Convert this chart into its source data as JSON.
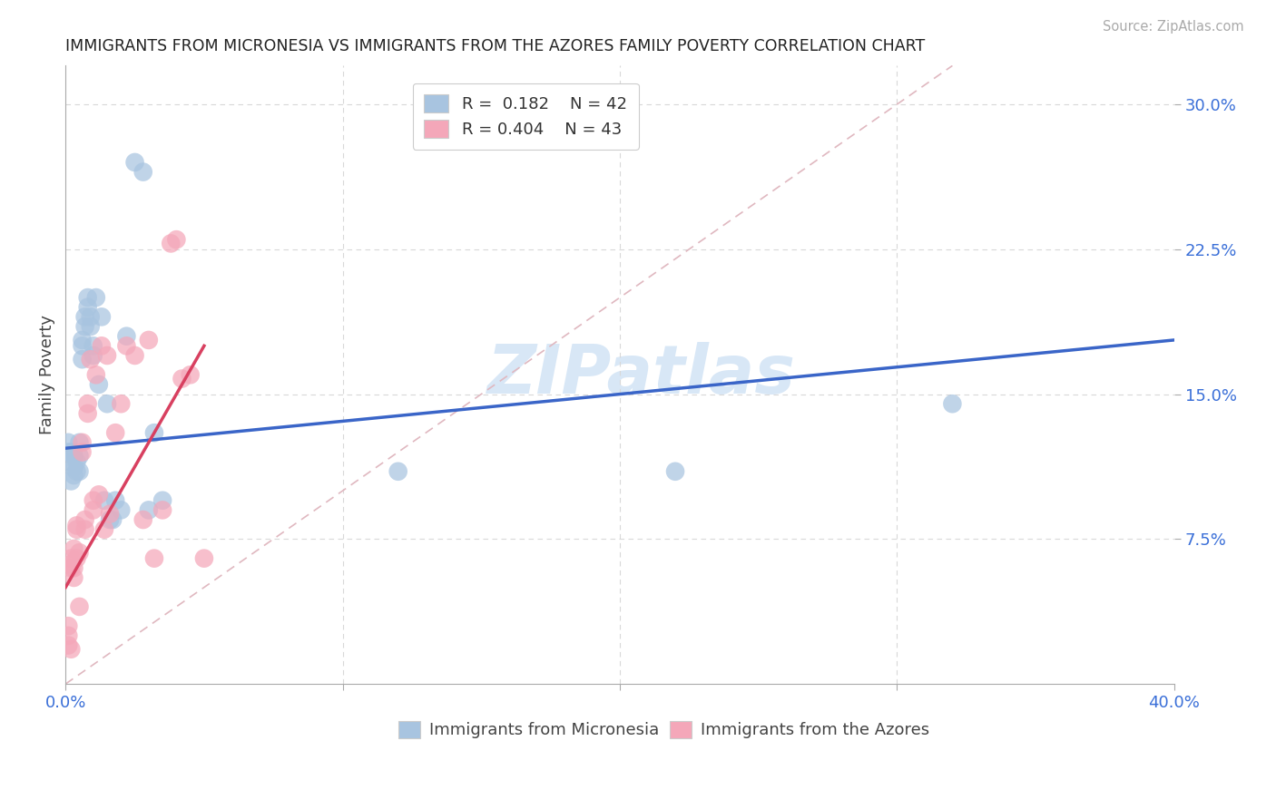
{
  "title": "IMMIGRANTS FROM MICRONESIA VS IMMIGRANTS FROM THE AZORES FAMILY POVERTY CORRELATION CHART",
  "source": "Source: ZipAtlas.com",
  "ylabel": "Family Poverty",
  "xlim": [
    0.0,
    0.4
  ],
  "ylim": [
    0.0,
    0.32
  ],
  "xticks": [
    0.0,
    0.1,
    0.2,
    0.3,
    0.4
  ],
  "ytick_vals": [
    0.075,
    0.15,
    0.225,
    0.3
  ],
  "yticklabels": [
    "7.5%",
    "15.0%",
    "22.5%",
    "30.0%"
  ],
  "legend1_R": "0.182",
  "legend1_N": "42",
  "legend2_R": "0.404",
  "legend2_N": "43",
  "legend1_label": "Immigrants from Micronesia",
  "legend2_label": "Immigrants from the Azores",
  "micronesia_color": "#a8c4e0",
  "azores_color": "#f4a7b9",
  "micronesia_line_color": "#3a65c8",
  "azores_line_color": "#d84060",
  "diagonal_color": "#e0b8c0",
  "grid_color": "#d8d8d8",
  "watermark_text": "ZIPatlas",
  "watermark_color": "#b8d4f0",
  "micronesia_x": [
    0.001,
    0.001,
    0.002,
    0.002,
    0.002,
    0.003,
    0.003,
    0.003,
    0.004,
    0.004,
    0.005,
    0.005,
    0.005,
    0.006,
    0.006,
    0.006,
    0.007,
    0.007,
    0.008,
    0.008,
    0.009,
    0.009,
    0.01,
    0.01,
    0.011,
    0.012,
    0.013,
    0.014,
    0.015,
    0.016,
    0.017,
    0.018,
    0.02,
    0.022,
    0.025,
    0.028,
    0.03,
    0.032,
    0.035,
    0.22,
    0.32,
    0.12
  ],
  "micronesia_y": [
    0.12,
    0.125,
    0.115,
    0.12,
    0.105,
    0.112,
    0.118,
    0.108,
    0.115,
    0.11,
    0.118,
    0.125,
    0.11,
    0.178,
    0.175,
    0.168,
    0.19,
    0.185,
    0.2,
    0.195,
    0.185,
    0.19,
    0.175,
    0.17,
    0.2,
    0.155,
    0.19,
    0.095,
    0.145,
    0.085,
    0.085,
    0.095,
    0.09,
    0.18,
    0.27,
    0.265,
    0.09,
    0.13,
    0.095,
    0.11,
    0.145,
    0.11
  ],
  "azores_x": [
    0.001,
    0.001,
    0.001,
    0.002,
    0.002,
    0.002,
    0.002,
    0.003,
    0.003,
    0.003,
    0.004,
    0.004,
    0.004,
    0.005,
    0.005,
    0.006,
    0.006,
    0.007,
    0.007,
    0.008,
    0.008,
    0.009,
    0.01,
    0.01,
    0.011,
    0.012,
    0.013,
    0.014,
    0.015,
    0.016,
    0.018,
    0.02,
    0.022,
    0.025,
    0.028,
    0.03,
    0.032,
    0.035,
    0.038,
    0.04,
    0.042,
    0.045,
    0.05
  ],
  "azores_y": [
    0.02,
    0.025,
    0.03,
    0.06,
    0.065,
    0.062,
    0.018,
    0.06,
    0.055,
    0.07,
    0.08,
    0.082,
    0.065,
    0.04,
    0.068,
    0.125,
    0.12,
    0.08,
    0.085,
    0.145,
    0.14,
    0.168,
    0.09,
    0.095,
    0.16,
    0.098,
    0.175,
    0.08,
    0.17,
    0.088,
    0.13,
    0.145,
    0.175,
    0.17,
    0.085,
    0.178,
    0.065,
    0.09,
    0.228,
    0.23,
    0.158,
    0.16,
    0.065
  ],
  "blue_line_x0": 0.0,
  "blue_line_y0": 0.122,
  "blue_line_x1": 0.4,
  "blue_line_y1": 0.178,
  "pink_line_x0": 0.0,
  "pink_line_y0": 0.05,
  "pink_line_x1": 0.05,
  "pink_line_y1": 0.175
}
